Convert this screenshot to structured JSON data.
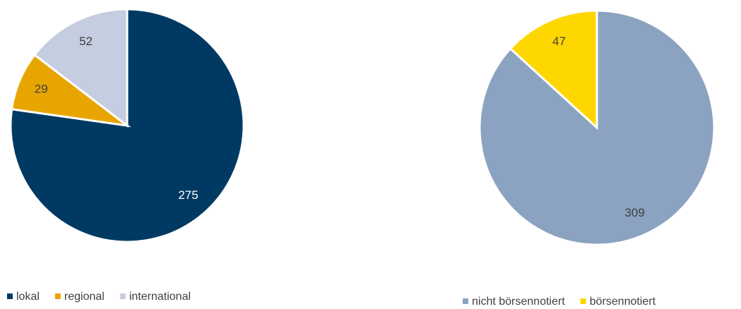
{
  "chart_data": [
    {
      "type": "pie",
      "categories": [
        "lokal",
        "regional",
        "international"
      ],
      "values": [
        275,
        29,
        52
      ],
      "colors": [
        "#003a63",
        "#e8a500",
        "#c5cde0"
      ],
      "label_colors": [
        "#ffffff",
        "#404040",
        "#404040"
      ],
      "legend": "bottom"
    },
    {
      "type": "pie",
      "categories": [
        "nicht börsennotiert",
        "börsennotiert"
      ],
      "values": [
        309,
        47
      ],
      "colors": [
        "#8ba3c1",
        "#ffd700"
      ],
      "label_colors": [
        "#404040",
        "#404040"
      ],
      "legend": "bottom"
    }
  ]
}
